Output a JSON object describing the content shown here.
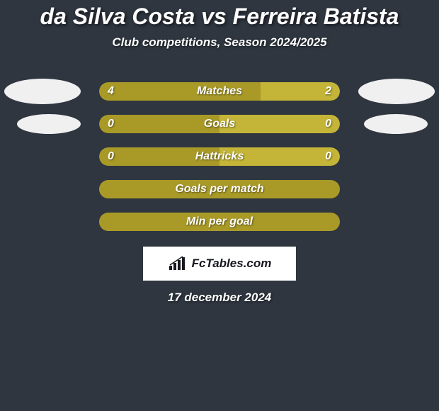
{
  "title_part1": "da Silva Costa",
  "title_vs": "vs",
  "title_part2": "Ferreira Batista",
  "subtitle": "Club competitions, Season 2024/2025",
  "rows": [
    {
      "label": "Matches",
      "left_value": "4",
      "right_value": "2",
      "left_pct": 67,
      "right_pct": 33,
      "left_color": "#a99a28",
      "right_color": "#c4b538",
      "show_avatars": true,
      "avatar_size": "large",
      "avatar_color": "#f0f0f0"
    },
    {
      "label": "Goals",
      "left_value": "0",
      "right_value": "0",
      "left_pct": 50,
      "right_pct": 50,
      "left_color": "#a99a28",
      "right_color": "#c4b538",
      "show_avatars": true,
      "avatar_size": "small",
      "avatar_color": "#f0f0f0"
    },
    {
      "label": "Hattricks",
      "left_value": "0",
      "right_value": "0",
      "left_pct": 50,
      "right_pct": 50,
      "left_color": "#a99a28",
      "right_color": "#c4b538",
      "show_avatars": false
    },
    {
      "label": "Goals per match",
      "full_bar": true,
      "bar_color": "#a99a28",
      "show_avatars": false
    },
    {
      "label": "Min per goal",
      "full_bar": true,
      "bar_color": "#a99a28",
      "show_avatars": false
    }
  ],
  "credit": "FcTables.com",
  "date": "17 december 2024",
  "background_color": "#2f3640"
}
